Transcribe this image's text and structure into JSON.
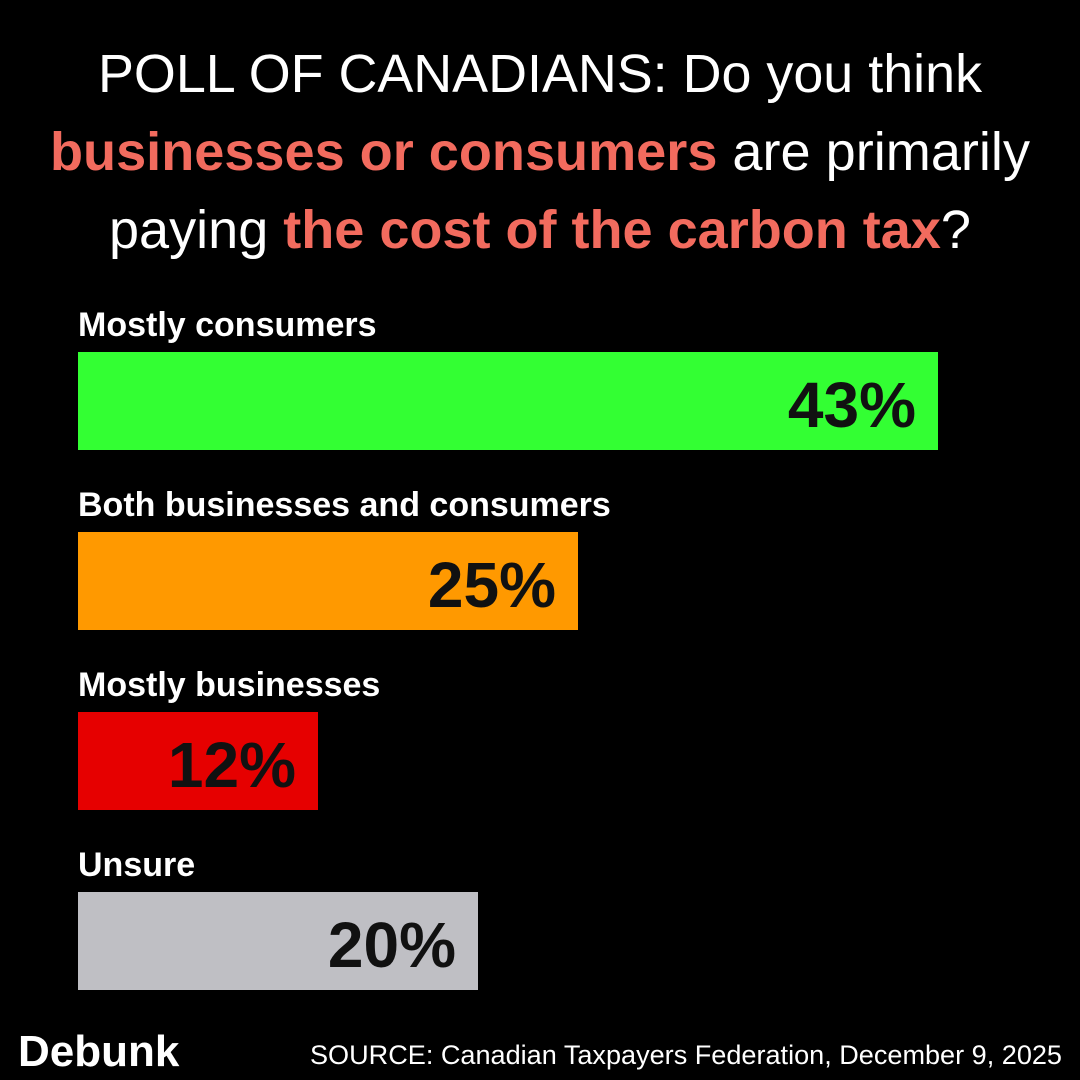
{
  "chart_data": {
    "type": "bar",
    "orientation": "horizontal",
    "title_lines": [
      [
        {
          "text": "POLL OF CANADIANS: Do you think",
          "color": "#ffffff"
        }
      ],
      [
        {
          "text": "businesses or consumers",
          "color": "#f26b5e"
        },
        {
          "text": " are primarily",
          "color": "#ffffff"
        }
      ],
      [
        {
          "text": "paying ",
          "color": "#ffffff"
        },
        {
          "text": "the cost of the carbon tax",
          "color": "#f26b5e"
        },
        {
          "text": "?",
          "color": "#ffffff"
        }
      ]
    ],
    "categories": [
      "Mostly consumers",
      "Both businesses and consumers",
      "Mostly businesses",
      "Unsure"
    ],
    "values": [
      43,
      25,
      12,
      20
    ],
    "value_labels": [
      "43%",
      "25%",
      "12%",
      "20%"
    ],
    "colors": [
      "#33ff33",
      "#ff9900",
      "#e60000",
      "#bfbfc4"
    ],
    "source": "SOURCE: Canadian Taxpayers Federation, December 9, 2025",
    "logo": "Debunk"
  }
}
